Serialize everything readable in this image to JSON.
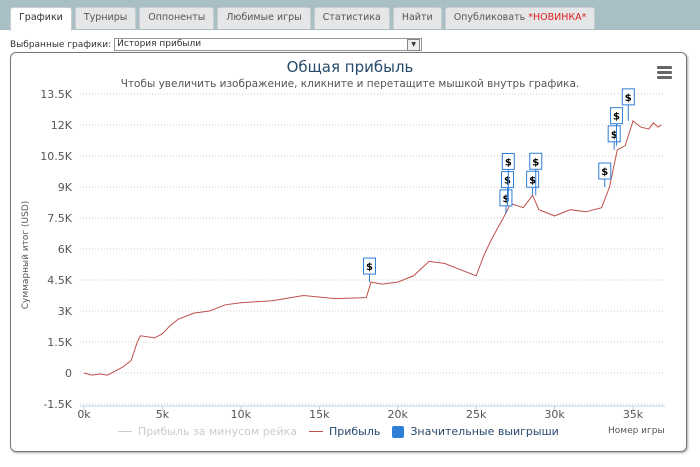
{
  "tabs": [
    {
      "label": "Графики",
      "active": true
    },
    {
      "label": "Турниры"
    },
    {
      "label": "Оппоненты"
    },
    {
      "label": "Любимые игры"
    },
    {
      "label": "Статистика"
    },
    {
      "label": "Найти"
    },
    {
      "label": "Опубликовать",
      "badge": "*НОВИНКА*"
    }
  ],
  "selector": {
    "label": "Выбранные графики:",
    "value": "История прибыли"
  },
  "chart_data": {
    "type": "line",
    "title": "Общая прибыль",
    "subtitle": "Чтобы увеличить изображение, кликните и перетащите мышкой внутрь графика.",
    "xlabel": "Номер игры",
    "ylabel": "Суммарный итог (USD)",
    "xlim": [
      0,
      37000
    ],
    "ylim": [
      -1500,
      13500
    ],
    "x_ticks": [
      "0k",
      "5k",
      "10k",
      "15k",
      "20k",
      "25k",
      "30k",
      "35k"
    ],
    "y_ticks": [
      "-1.5K",
      "0",
      "1.5K",
      "3K",
      "4.5K",
      "6K",
      "7.5K",
      "9K",
      "10.5K",
      "12K",
      "13.5K"
    ],
    "grid": true,
    "legend": "bottom",
    "series": [
      {
        "name": "Прибыль за минусом рейка",
        "color": "#cccccc",
        "visible": false,
        "points": []
      },
      {
        "name": "Прибыль",
        "color": "#c0504d",
        "points": [
          [
            0,
            0
          ],
          [
            500,
            -100
          ],
          [
            1000,
            -50
          ],
          [
            1500,
            -100
          ],
          [
            2000,
            100
          ],
          [
            2500,
            300
          ],
          [
            3000,
            600
          ],
          [
            3400,
            1500
          ],
          [
            3600,
            1800
          ],
          [
            4500,
            1700
          ],
          [
            5000,
            1900
          ],
          [
            5500,
            2300
          ],
          [
            6000,
            2600
          ],
          [
            7000,
            2900
          ],
          [
            8000,
            3000
          ],
          [
            9000,
            3300
          ],
          [
            10000,
            3400
          ],
          [
            12000,
            3500
          ],
          [
            14000,
            3750
          ],
          [
            16000,
            3600
          ],
          [
            18000,
            3650
          ],
          [
            18300,
            4400
          ],
          [
            19000,
            4300
          ],
          [
            20000,
            4400
          ],
          [
            21000,
            4700
          ],
          [
            22000,
            5400
          ],
          [
            23000,
            5300
          ],
          [
            24000,
            5000
          ],
          [
            25000,
            4700
          ],
          [
            25500,
            5700
          ],
          [
            26000,
            6500
          ],
          [
            26800,
            7600
          ],
          [
            27200,
            8200
          ],
          [
            28000,
            8000
          ],
          [
            28600,
            8600
          ],
          [
            29000,
            7900
          ],
          [
            30000,
            7600
          ],
          [
            31000,
            7900
          ],
          [
            32000,
            7800
          ],
          [
            33000,
            8000
          ],
          [
            33500,
            9000
          ],
          [
            34000,
            10800
          ],
          [
            34500,
            11000
          ],
          [
            35000,
            12200
          ],
          [
            35500,
            11900
          ],
          [
            36000,
            11800
          ],
          [
            36300,
            12100
          ],
          [
            36600,
            11900
          ],
          [
            36800,
            12000
          ]
        ]
      },
      {
        "name": "Значительные выигрыши",
        "color": "#2f7ed8",
        "flags": [
          {
            "x": 18200,
            "y": 4400,
            "label": "$"
          },
          {
            "x": 26900,
            "y": 7700,
            "label": "$"
          },
          {
            "x": 27000,
            "y": 8100,
            "label": "$"
          },
          {
            "x": 27050,
            "y": 8300,
            "label": "$"
          },
          {
            "x": 28600,
            "y": 8600,
            "label": "$"
          },
          {
            "x": 28800,
            "y": 8600,
            "label": "$"
          },
          {
            "x": 33200,
            "y": 9000,
            "label": "$"
          },
          {
            "x": 33800,
            "y": 10800,
            "label": "$"
          },
          {
            "x": 33950,
            "y": 11000,
            "label": "$"
          },
          {
            "x": 34700,
            "y": 12200,
            "label": "$"
          }
        ]
      }
    ]
  }
}
